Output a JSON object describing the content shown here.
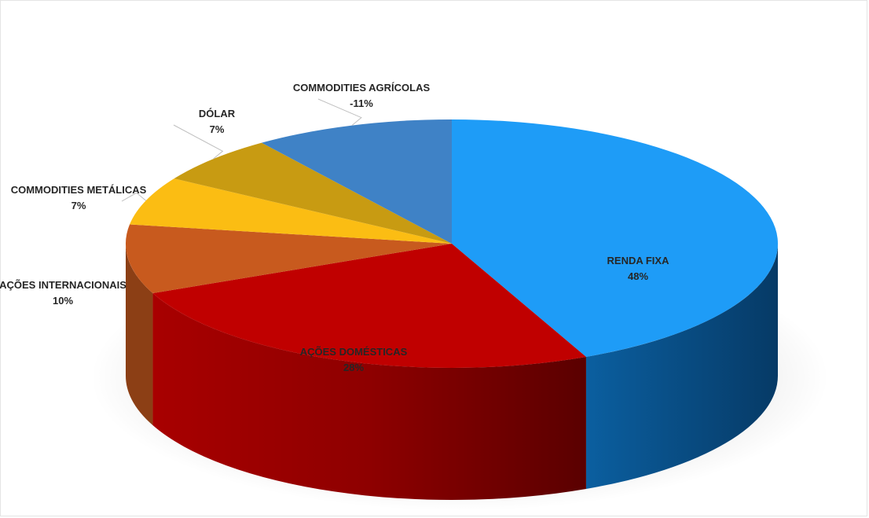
{
  "chart_data": {
    "type": "pie",
    "title": "",
    "slices": [
      {
        "name": "RENDA FIXA",
        "value_label": "48%",
        "value": 48,
        "color": "#1e9cf7"
      },
      {
        "name": "AÇÕES DOMÉSTICAS",
        "value_label": "28%",
        "value": 28,
        "color": "#c00000"
      },
      {
        "name": "AÇÕES INTERNACIONAIS",
        "value_label": "10%",
        "value": 10,
        "color": "#c85a1e"
      },
      {
        "name": "COMMODITIES METÁLICAS",
        "value_label": "7%",
        "value": 7,
        "color": "#fbbd13"
      },
      {
        "name": "DÓLAR",
        "value_label": "7%",
        "value": 7,
        "color": "#c89b12"
      },
      {
        "name": "COMMODITIES AGRÍCOLAS",
        "value_label": "-11%",
        "value": -11,
        "color": "#3f82c6"
      }
    ],
    "style": "3d"
  }
}
